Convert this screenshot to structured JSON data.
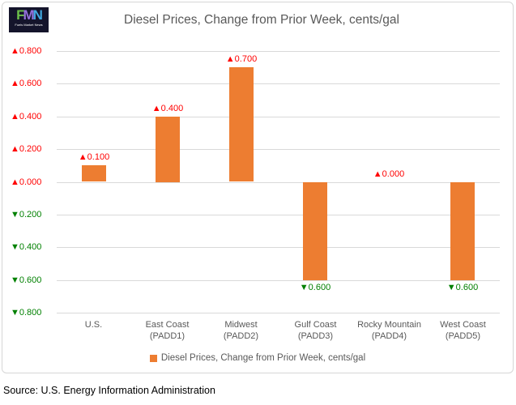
{
  "logo": {
    "letters": [
      {
        "char": "F",
        "color": "#6cc04a"
      },
      {
        "char": "M",
        "color": "#9470db"
      },
      {
        "char": "N",
        "color": "#41a8e0"
      }
    ],
    "subtext": "Fuels Market News"
  },
  "chart_data": {
    "type": "bar",
    "title": "Diesel Prices, Change from Prior Week, cents/gal",
    "categories": [
      "U.S.",
      "East Coast (PADD1)",
      "Midwest (PADD2)",
      "Gulf Coast (PADD3)",
      "Rocky Mountain (PADD4)",
      "West Coast (PADD5)"
    ],
    "values": [
      0.1,
      0.4,
      0.7,
      -0.6,
      0.0,
      -0.6
    ],
    "data_labels": [
      "▲0.100",
      "▲0.400",
      "▲0.700",
      "▼0.600",
      "▲0.000",
      "▼0.600"
    ],
    "ytick_values": [
      0.8,
      0.6,
      0.4,
      0.2,
      0.0,
      -0.2,
      -0.4,
      -0.6,
      -0.8
    ],
    "ytick_labels": [
      "▲0.800",
      "▲0.600",
      "▲0.400",
      "▲0.200",
      "▲0.000",
      "▼0.200",
      "▼0.400",
      "▼0.600",
      "▼0.800"
    ],
    "ylim": [
      -0.8,
      0.8
    ],
    "grid": true,
    "legend": "Diesel Prices, Change from Prior Week, cents/gal",
    "legend_position": "bottom",
    "colors": {
      "bar": "#ed7d31",
      "positive_label": "#ff0000",
      "negative_label": "#008000",
      "gridline": "#d9d9d9",
      "title_text": "#595959"
    }
  },
  "source": "Source: U.S. Energy Information Administration"
}
